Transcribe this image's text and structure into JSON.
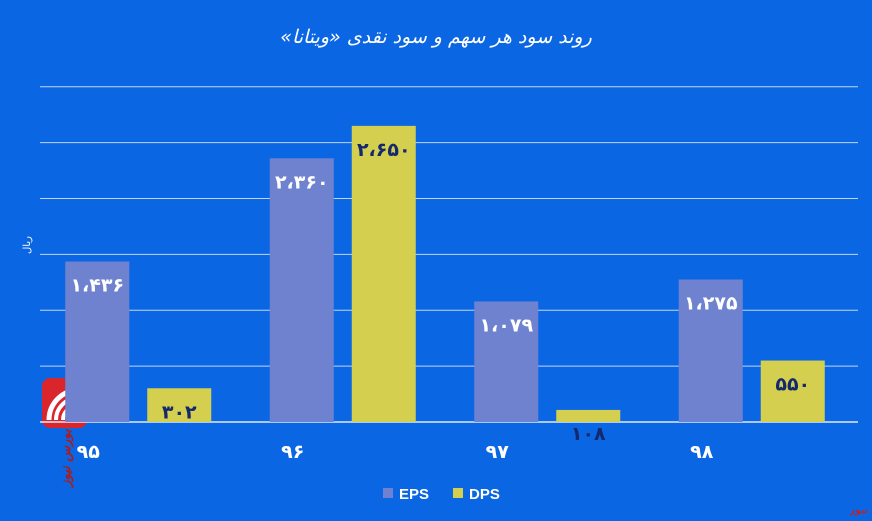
{
  "chart_data": {
    "type": "bar",
    "title": "روند سود هر سهم و سود نقدی «ویتانا»",
    "ylabel": "ریال",
    "categories": [
      "۹۵",
      "۹۶",
      "۹۷",
      "۹۸"
    ],
    "series": [
      {
        "name": "EPS",
        "values": [
          1436,
          2360,
          1079,
          1275
        ],
        "labels": [
          "۱،۴۳۶",
          "۲،۳۶۰",
          "۱،۰۷۹",
          "۱،۲۷۵"
        ],
        "color": "#6f82cf",
        "label_color": "#ffffff"
      },
      {
        "name": "DPS",
        "values": [
          302,
          2650,
          108,
          550
        ],
        "labels": [
          "۳۰۲",
          "۲،۶۵۰",
          "۱۰۸",
          "۵۵۰"
        ],
        "color": "#d4cf4f",
        "label_color": "#14286e"
      }
    ],
    "ylim": [
      0,
      3150
    ],
    "gridline_step": 500,
    "grid": true,
    "legend_position": "bottom"
  },
  "branding": {
    "logo_text": "بورس نیوز",
    "footer_text": "بورس نیوز",
    "logo_color": "#d9262c"
  },
  "colors": {
    "background": "#0a66e3",
    "gridline": "#bfd6f7"
  }
}
